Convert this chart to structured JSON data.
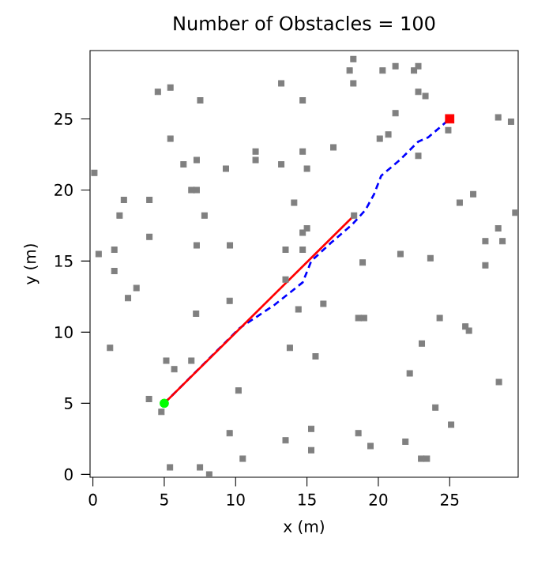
{
  "chart_data": {
    "type": "scatter",
    "title": "Number of Obstacles = 100",
    "xlabel": "x (m)",
    "ylabel": "y (m)",
    "xlim": [
      -0.2,
      29.8
    ],
    "ylim": [
      -0.2,
      29.8
    ],
    "xticks": [
      0,
      5,
      10,
      15,
      20,
      25
    ],
    "yticks": [
      0,
      5,
      10,
      15,
      20,
      25
    ],
    "grid": false,
    "series": [
      {
        "marker": "square",
        "color": "#808080",
        "x": [
          4.55,
          5.43,
          7.52,
          13.2,
          14.7,
          5.43,
          6.35,
          7.27,
          9.32,
          11.4,
          11.4,
          13.2,
          14.7,
          15.0,
          0.1,
          2.17,
          3.96,
          6.9,
          7.27,
          1.87,
          7.82,
          14.1,
          14.7,
          15.0,
          3.96,
          7.27,
          9.6,
          1.5,
          0.4,
          13.5,
          14.7,
          18.25,
          17.99,
          20.3,
          21.2,
          22.5,
          22.8,
          18.25,
          22.8,
          23.3,
          21.2,
          28.4,
          29.3,
          24.9,
          20.7,
          20.1,
          16.85,
          22.8,
          26.65,
          25.7,
          29.6,
          28.4,
          27.5,
          28.7,
          21.55,
          18.9,
          23.65,
          27.5,
          18.3,
          1.5,
          3.05,
          2.46,
          9.58,
          7.23,
          14.4,
          13.5,
          1.2,
          5.14,
          6.9,
          5.7,
          13.8,
          10.2,
          3.93,
          4.8,
          9.58,
          13.5,
          10.5,
          5.4,
          7.5,
          8.15,
          16.15,
          18.6,
          19.0,
          24.3,
          26.1,
          26.35,
          23.05,
          15.6,
          22.2,
          28.45,
          24.0,
          25.1,
          15.3,
          18.6,
          15.3,
          19.45,
          21.9,
          23.0,
          23.4
        ],
        "values": [
          26.9,
          27.2,
          26.3,
          27.5,
          26.3,
          23.6,
          21.8,
          22.1,
          21.5,
          22.7,
          22.1,
          21.8,
          22.7,
          21.5,
          21.2,
          19.3,
          19.3,
          20.0,
          20.0,
          18.2,
          18.2,
          19.1,
          17.0,
          17.3,
          16.7,
          16.1,
          16.1,
          15.8,
          15.5,
          15.8,
          15.8,
          29.2,
          28.4,
          28.4,
          28.7,
          28.4,
          28.7,
          27.5,
          26.9,
          26.6,
          25.4,
          25.1,
          24.8,
          24.2,
          23.9,
          23.6,
          23.0,
          22.4,
          19.7,
          19.1,
          18.4,
          17.3,
          16.4,
          16.4,
          15.5,
          14.9,
          15.2,
          14.7,
          18.2,
          14.3,
          13.1,
          12.4,
          12.2,
          11.3,
          11.6,
          13.7,
          8.9,
          8.0,
          8.0,
          7.4,
          8.9,
          5.9,
          5.3,
          4.4,
          2.9,
          2.4,
          1.1,
          0.5,
          0.5,
          0.0,
          12.0,
          11.0,
          11.0,
          11.0,
          10.4,
          10.1,
          9.2,
          8.3,
          7.1,
          6.5,
          4.7,
          3.5,
          3.2,
          2.9,
          1.7,
          2.0,
          2.3,
          1.1,
          1.1
        ]
      },
      {
        "type": "line",
        "color": "#0000ff",
        "line_style": "dashed",
        "x": [
          5,
          10.3,
          12.7,
          14.7,
          15.3,
          16.7,
          18.2,
          19.1,
          19.7,
          20.2,
          21.5,
          22.8,
          23.5,
          25
        ],
        "values": [
          5,
          10.3,
          11.9,
          13.5,
          15.0,
          16.3,
          17.6,
          18.6,
          19.7,
          21.0,
          22.1,
          23.4,
          23.7,
          25
        ]
      },
      {
        "type": "line",
        "color": "#ff0000",
        "line_style": "solid",
        "x": [
          5,
          18.3
        ],
        "values": [
          5,
          18.2
        ]
      },
      {
        "type": "scatter",
        "marker": "circle",
        "color": "#00ff00",
        "x": [
          5
        ],
        "values": [
          5
        ]
      },
      {
        "type": "scatter",
        "marker": "square",
        "color": "#ff0000",
        "x": [
          25
        ],
        "values": [
          25
        ]
      }
    ]
  }
}
